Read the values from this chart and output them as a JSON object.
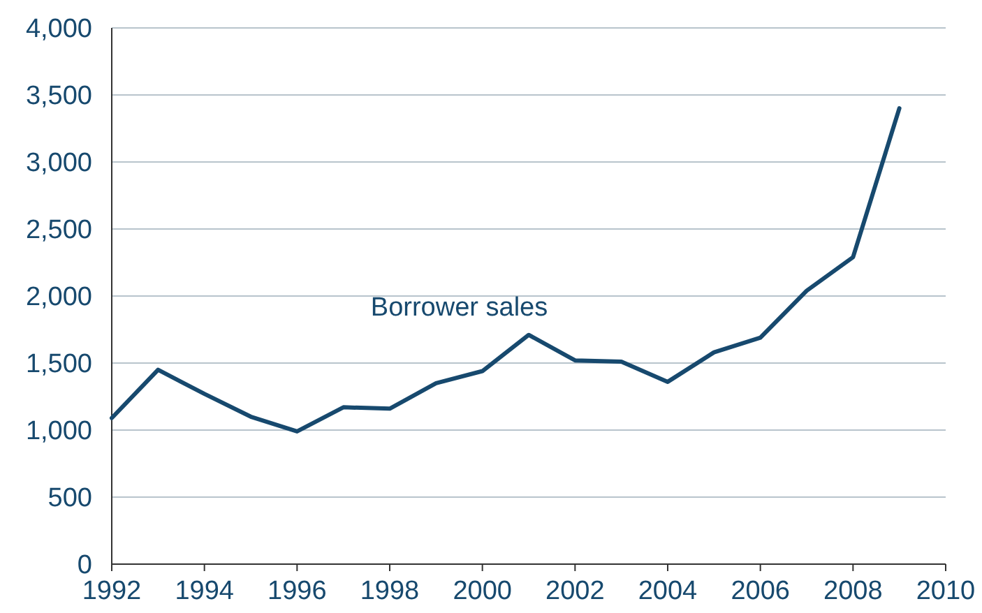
{
  "chart_data": {
    "type": "line",
    "x": [
      1992,
      1993,
      1994,
      1995,
      1996,
      1997,
      1998,
      1999,
      2000,
      2001,
      2002,
      2003,
      2004,
      2005,
      2006,
      2007,
      2008,
      2009
    ],
    "series": [
      {
        "name": "Borrower sales",
        "color": "#17496e",
        "values": [
          1090,
          1450,
          1270,
          1100,
          990,
          1170,
          1160,
          1350,
          1440,
          1710,
          1520,
          1510,
          1360,
          1580,
          1690,
          2040,
          2290,
          3400
        ]
      }
    ],
    "xlim": [
      1992,
      2010
    ],
    "xticks": [
      1992,
      1994,
      1996,
      1998,
      2000,
      2002,
      2004,
      2006,
      2008,
      2010
    ],
    "ylim": [
      0,
      4000
    ],
    "yticks": [
      0,
      {
        "value": 500,
        "label": "500"
      },
      {
        "value": 1000,
        "label": "1,000"
      },
      {
        "value": 1500,
        "label": "1,500"
      },
      {
        "value": 2000,
        "label": "2,000"
      },
      {
        "value": 2500,
        "label": "2,500"
      },
      {
        "value": 3000,
        "label": "3,000"
      },
      {
        "value": 3500,
        "label": "3,500"
      },
      {
        "value": 4000,
        "label": "4,000"
      }
    ],
    "grid": "y",
    "legend": false,
    "marker": "none",
    "line_style": "solid"
  }
}
